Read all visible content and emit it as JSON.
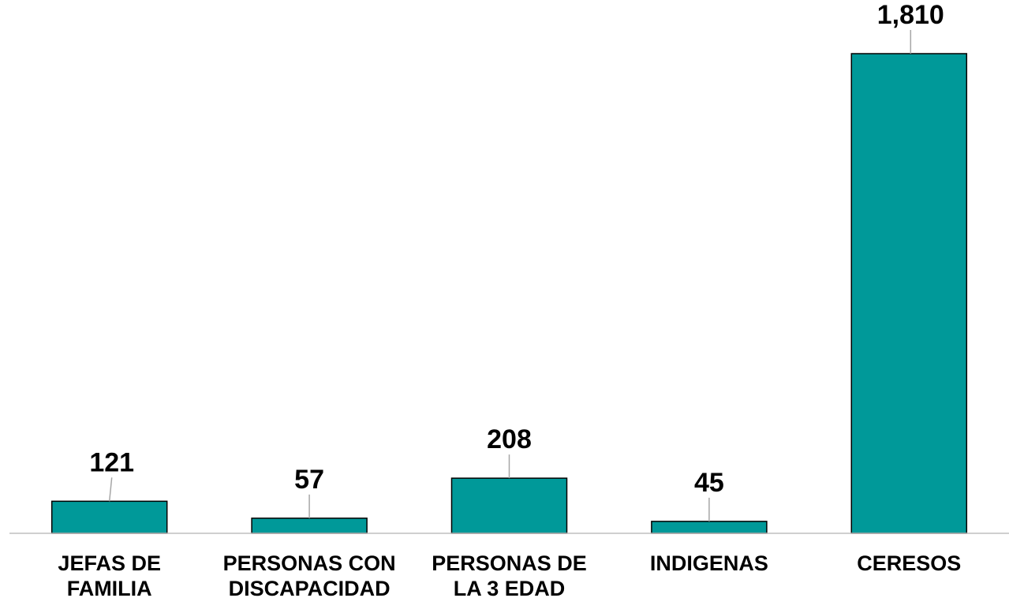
{
  "chart_data": {
    "type": "bar",
    "categories": [
      [
        "JEFAS DE",
        "FAMILIA"
      ],
      [
        "PERSONAS CON",
        "DISCAPACIDAD"
      ],
      [
        "PERSONAS DE",
        "LA 3 EDAD"
      ],
      [
        "INDIGENAS"
      ],
      [
        "CERESOS"
      ]
    ],
    "values": [
      121,
      57,
      208,
      45,
      1810
    ],
    "value_labels": [
      "121",
      "57",
      "208",
      "45",
      "1,810"
    ],
    "title": "",
    "xlabel": "",
    "ylabel": "",
    "ylim": [
      0,
      1850
    ],
    "grid": false,
    "legend": "none",
    "colors": {
      "bar_fill": "#009999",
      "bar_stroke": "#000000",
      "axis": "#bfbfbf",
      "leader": "#a6a6a6"
    }
  }
}
